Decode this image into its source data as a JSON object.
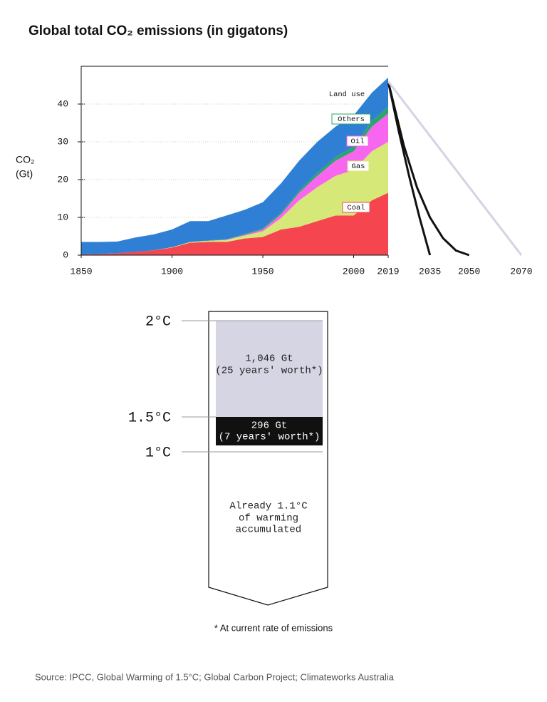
{
  "chart_data": [
    {
      "type": "stacked-area",
      "title": "Global total CO₂ emissions (in gigatons)",
      "ylabel": [
        "CO₂",
        "(Gt)"
      ],
      "x": [
        1850,
        1860,
        1870,
        1880,
        1890,
        1900,
        1910,
        1920,
        1930,
        1940,
        1950,
        1960,
        1970,
        1980,
        1990,
        2000,
        2010,
        2019
      ],
      "xlim": [
        1850,
        2019
      ],
      "xticks": [
        1850,
        1900,
        1950,
        2000,
        2019
      ],
      "ylim": [
        0,
        50
      ],
      "yticks": [
        0,
        10,
        20,
        30,
        40
      ],
      "grid": true,
      "series": [
        {
          "name": "Coal",
          "color": "#f5454f",
          "values": [
            0.2,
            0.3,
            0.5,
            0.9,
            1.3,
            2.0,
            3.3,
            3.5,
            3.5,
            4.4,
            4.8,
            6.8,
            7.5,
            9.0,
            10.5,
            10.5,
            14.5,
            16.5
          ]
        },
        {
          "name": "Gas",
          "color": "#d6e878",
          "values": [
            0,
            0,
            0,
            0,
            0,
            0.1,
            0.2,
            0.3,
            0.5,
            0.8,
            1.5,
            3.0,
            7.0,
            9.0,
            10.5,
            12.0,
            13.0,
            13.5
          ]
        },
        {
          "name": "Oil",
          "color": "#f866f0",
          "values": [
            0,
            0,
            0,
            0,
            0,
            0,
            0,
            0,
            0.1,
            0.2,
            0.5,
            1.0,
            2.0,
            3.0,
            4.0,
            5.0,
            6.5,
            7.5
          ]
        },
        {
          "name": "Others",
          "color": "#2aa56b",
          "values": [
            0,
            0,
            0,
            0,
            0,
            0,
            0,
            0.1,
            0.1,
            0.2,
            0.3,
            0.4,
            0.6,
            0.8,
            1.0,
            1.2,
            1.5,
            1.8
          ]
        },
        {
          "name": "Land use",
          "color": "#2f80d4",
          "values": [
            3.3,
            3.2,
            3.1,
            3.8,
            4.2,
            4.7,
            5.5,
            5.1,
            6.3,
            6.4,
            6.9,
            7.8,
            7.9,
            8.2,
            8.0,
            8.3,
            7.5,
            7.7
          ]
        }
      ]
    },
    {
      "type": "line",
      "xlim": [
        2019,
        2070
      ],
      "xticks": [
        2035,
        2050,
        2070
      ],
      "ylim": [
        0,
        50
      ],
      "series": [
        {
          "color": "#111111",
          "x": [
            2019,
            2023,
            2027,
            2031,
            2035
          ],
          "values": [
            46,
            33,
            21,
            10,
            0
          ]
        },
        {
          "color": "#111111",
          "x": [
            2019,
            2025,
            2030,
            2035,
            2040,
            2045,
            2050
          ],
          "values": [
            46,
            29,
            18,
            10,
            4.5,
            1.2,
            0
          ]
        },
        {
          "color": "#d4d3e3",
          "x": [
            2019,
            2070
          ],
          "values": [
            46,
            0
          ]
        }
      ]
    }
  ],
  "budget": {
    "levels": [
      "2°C",
      "1.5°C",
      "1°C"
    ],
    "blocks": [
      [
        "1,046 Gt",
        "(25 years' worth*)"
      ],
      [
        "296 Gt",
        "(7 years' worth*)"
      ]
    ],
    "accumulated": [
      "Already 1.1°C",
      "of warming",
      "accumulated"
    ],
    "footnote": "* At current rate of emissions"
  },
  "source": "Source: IPCC, Global Warming of 1.5°C; Global Carbon Project; Climateworks Australia"
}
